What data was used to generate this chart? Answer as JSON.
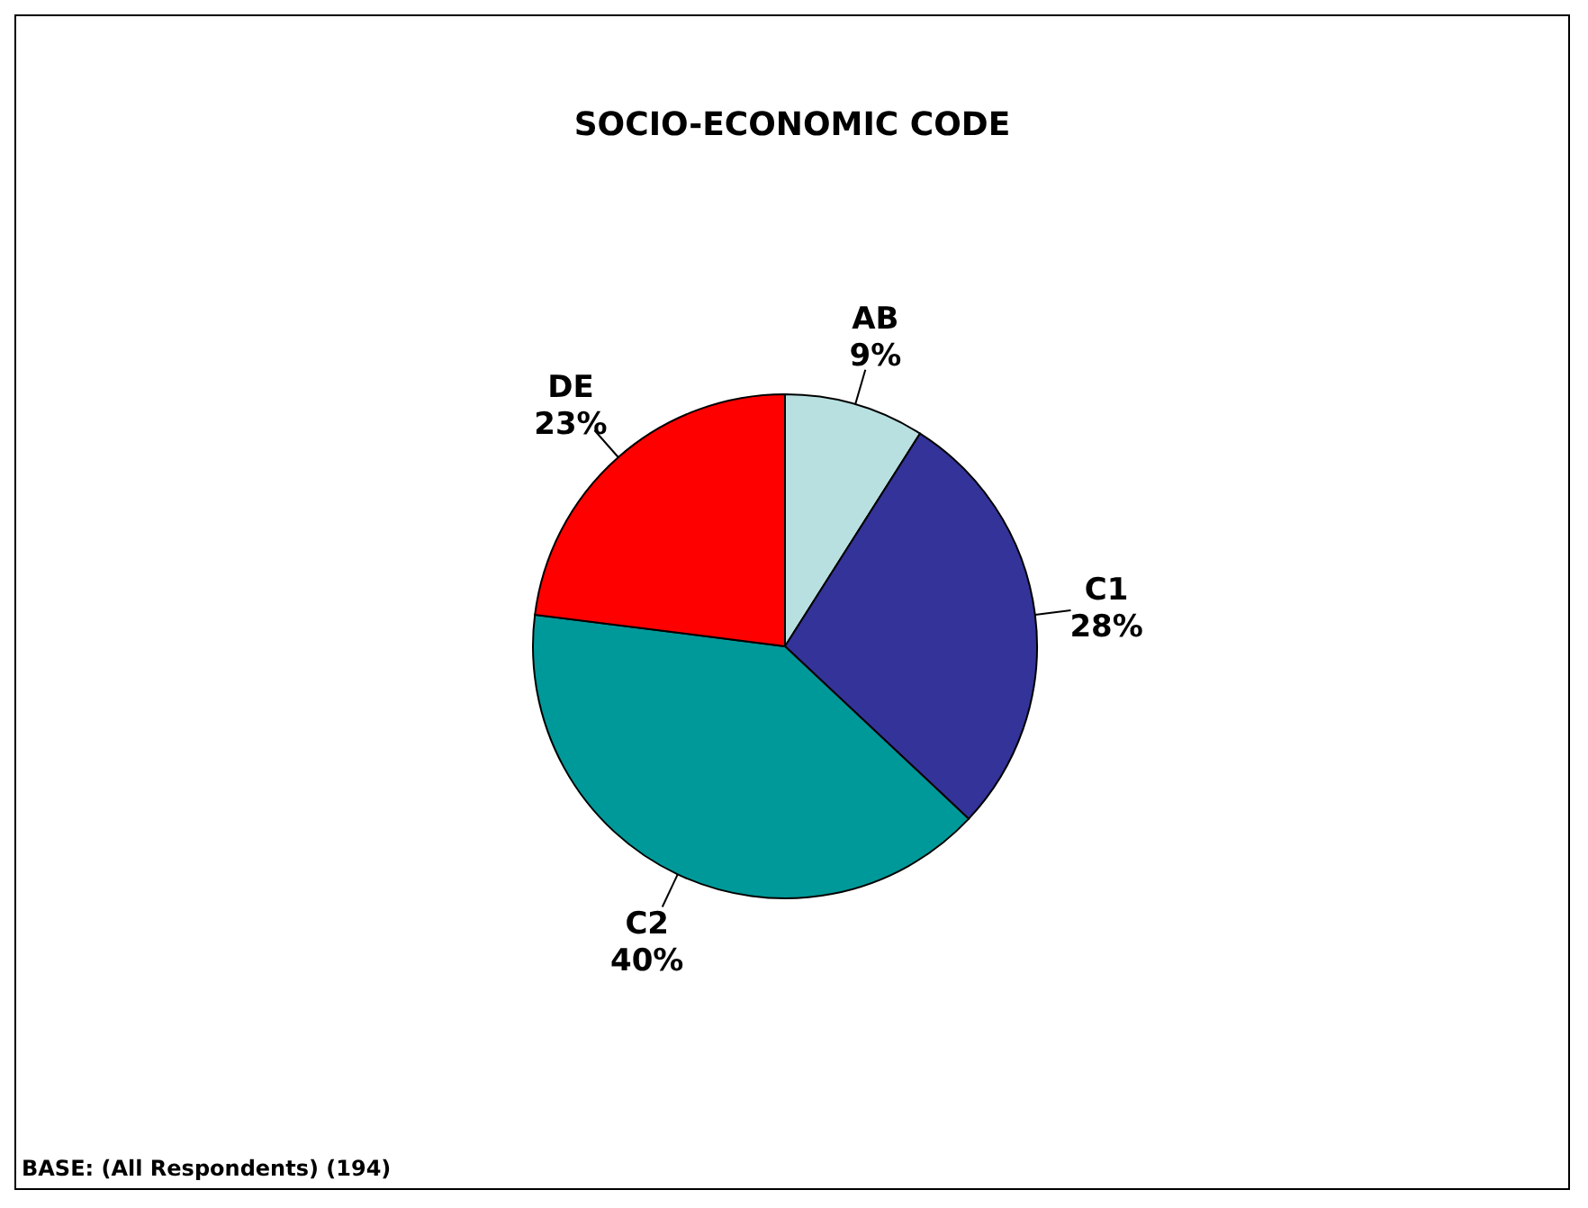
{
  "chart_data": {
    "type": "pie",
    "title": "SOCIO-ECONOMIC CODE",
    "categories": [
      "AB",
      "C1",
      "C2",
      "DE"
    ],
    "values": [
      9,
      28,
      40,
      23
    ],
    "colors": [
      "#b8e0e0",
      "#333399",
      "#009999",
      "#ff0000"
    ],
    "value_labels": [
      "9%",
      "28%",
      "40%",
      "23%"
    ],
    "legend": false,
    "annotations": [
      "BASE: (All Respondents) (194)"
    ]
  }
}
